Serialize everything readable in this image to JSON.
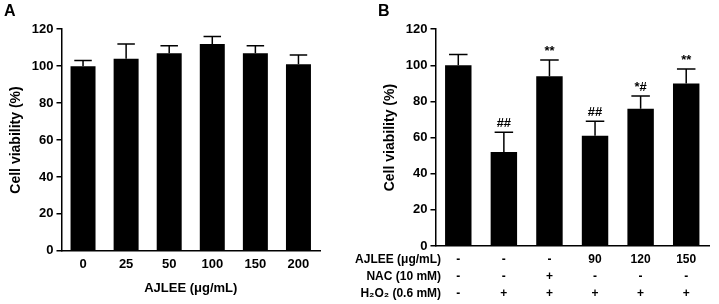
{
  "chart_data": [
    {
      "type": "bar",
      "title": "A",
      "categories": [
        "0",
        "25",
        "50",
        "100",
        "150",
        "200"
      ],
      "values": [
        100,
        104,
        107,
        112,
        107,
        101
      ],
      "errors": [
        3,
        8,
        4,
        4,
        4,
        5
      ],
      "color": "#000000",
      "x_label": "AJLEE (μg/mL)",
      "y_label": "Cell viability (%)",
      "ylim": [
        0,
        120
      ],
      "yticks": [
        0,
        20,
        40,
        60,
        80,
        100,
        120
      ],
      "grid": false
    },
    {
      "type": "bar",
      "title": "B",
      "categories": [
        null,
        null,
        null,
        null,
        null,
        null
      ],
      "values": [
        100,
        52,
        94,
        61,
        76,
        90
      ],
      "errors": [
        6,
        11,
        9,
        8,
        7,
        8
      ],
      "significance": [
        null,
        "##",
        "**",
        "##",
        "*#",
        "**"
      ],
      "condition_table": [
        {
          "label": "AJLEE (μg/mL)",
          "cells": [
            "-",
            "-",
            "-",
            "90",
            "120",
            "150"
          ]
        },
        {
          "label": "NAC (10 mM)",
          "cells": [
            "-",
            "-",
            "+",
            "-",
            "-",
            "-"
          ]
        },
        {
          "label": "H₂O₂ (0.6 mM)",
          "cells": [
            "-",
            "+",
            "+",
            "+",
            "+",
            "+"
          ]
        }
      ],
      "color": "#000000",
      "y_label": "Cell viability (%)",
      "ylim": [
        0,
        120
      ],
      "yticks": [
        0,
        20,
        40,
        60,
        80,
        100,
        120
      ],
      "grid": false,
      "tick_labels": "y"
    }
  ]
}
